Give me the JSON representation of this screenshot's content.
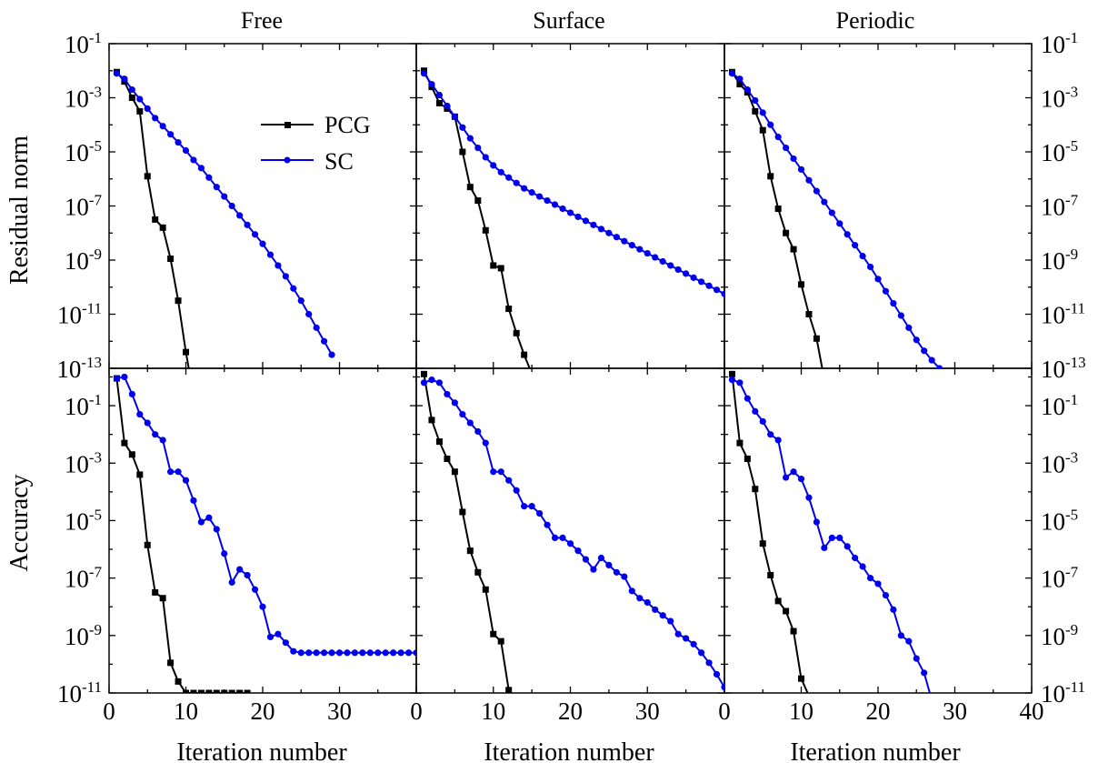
{
  "colors": {
    "PCG": "#000000",
    "SC": "#0000ee",
    "axis": "#000000",
    "background": "#ffffff"
  },
  "chart_data": {
    "type": "line",
    "layout": "2 rows x 3 columns, shared x axis",
    "column_titles": [
      "Free",
      "Surface",
      "Periodic"
    ],
    "legend": {
      "entries": [
        "PCG",
        "SC"
      ],
      "placement": "top-left panel, upper middle"
    },
    "xlabel": "Iteration number",
    "x_ticks": [
      0,
      10,
      20,
      30
    ],
    "x_tick_last": 40,
    "xlim": [
      0,
      40
    ],
    "rows": [
      {
        "ylabel": "Residual norm",
        "yscale": "log",
        "ylim_log10": [
          -13,
          -1
        ],
        "y_ticks": [
          {
            "base": "10",
            "exp": "-1"
          },
          {
            "base": "10",
            "exp": "-3"
          },
          {
            "base": "10",
            "exp": "-5"
          },
          {
            "base": "10",
            "exp": "-7"
          },
          {
            "base": "10",
            "exp": "-9"
          },
          {
            "base": "10",
            "exp": "-11"
          },
          {
            "base": "10",
            "exp": "-13"
          }
        ]
      },
      {
        "ylabel": "Accuracy",
        "yscale": "log",
        "ylim_log10": [
          -11,
          0.3
        ],
        "y_ticks": [
          {
            "base": "10",
            "exp": "-1"
          },
          {
            "base": "10",
            "exp": "-3"
          },
          {
            "base": "10",
            "exp": "-5"
          },
          {
            "base": "10",
            "exp": "-7"
          },
          {
            "base": "10",
            "exp": "-9"
          },
          {
            "base": "10",
            "exp": "-11"
          }
        ]
      }
    ],
    "panels": [
      {
        "row": 0,
        "col": 0,
        "title": "Free",
        "series": [
          {
            "name": "PCG",
            "x": [
              1,
              2,
              3,
              4,
              5,
              6,
              7,
              8,
              9,
              10,
              11
            ],
            "log10_y": [
              -2.05,
              -2.4,
              -3.0,
              -3.5,
              -5.9,
              -7.5,
              -7.8,
              -8.95,
              -10.5,
              -12.4,
              -14.0
            ]
          },
          {
            "name": "SC",
            "x": [
              1,
              2,
              3,
              4,
              5,
              6,
              7,
              8,
              9,
              10,
              11,
              12,
              13,
              14,
              15,
              16,
              17,
              18,
              19,
              20,
              21,
              22,
              23,
              24,
              25,
              26,
              27,
              28,
              29
            ],
            "log10_y": [
              -2.1,
              -2.3,
              -2.7,
              -3.05,
              -3.4,
              -3.75,
              -4.05,
              -4.35,
              -4.65,
              -4.95,
              -5.3,
              -5.6,
              -5.95,
              -6.3,
              -6.65,
              -7.0,
              -7.35,
              -7.7,
              -8.05,
              -8.4,
              -8.8,
              -9.2,
              -9.6,
              -10.05,
              -10.5,
              -11.0,
              -11.5,
              -12.0,
              -12.5
            ]
          }
        ]
      },
      {
        "row": 0,
        "col": 1,
        "title": "Surface",
        "series": [
          {
            "name": "PCG",
            "x": [
              1,
              2,
              3,
              4,
              5,
              6,
              7,
              8,
              9,
              10,
              11,
              12,
              13,
              14,
              15
            ],
            "log10_y": [
              -2.0,
              -2.6,
              -3.2,
              -3.4,
              -3.7,
              -5.0,
              -6.3,
              -6.8,
              -7.9,
              -9.2,
              -9.3,
              -10.8,
              -11.7,
              -12.5,
              -13.2
            ]
          },
          {
            "name": "SC",
            "x": [
              1,
              2,
              3,
              4,
              5,
              6,
              7,
              8,
              9,
              10,
              11,
              12,
              13,
              14,
              15,
              16,
              17,
              18,
              19,
              20,
              21,
              22,
              23,
              24,
              25,
              26,
              27,
              28,
              29,
              30,
              31,
              32,
              33,
              34,
              35,
              36,
              37,
              38,
              39,
              40
            ],
            "log10_y": [
              -2.1,
              -2.5,
              -2.9,
              -3.3,
              -3.7,
              -4.1,
              -4.5,
              -4.85,
              -5.2,
              -5.5,
              -5.75,
              -5.95,
              -6.15,
              -6.35,
              -6.5,
              -6.65,
              -6.8,
              -6.95,
              -7.1,
              -7.25,
              -7.4,
              -7.55,
              -7.7,
              -7.85,
              -8.0,
              -8.15,
              -8.3,
              -8.45,
              -8.6,
              -8.75,
              -8.9,
              -9.05,
              -9.2,
              -9.35,
              -9.5,
              -9.65,
              -9.8,
              -9.95,
              -10.1,
              -10.25
            ]
          }
        ]
      },
      {
        "row": 0,
        "col": 2,
        "title": "Periodic",
        "series": [
          {
            "name": "PCG",
            "x": [
              1,
              2,
              3,
              4,
              5,
              6,
              7,
              8,
              9,
              10,
              11,
              12,
              13
            ],
            "log10_y": [
              -2.05,
              -2.5,
              -2.8,
              -3.5,
              -4.2,
              -5.9,
              -7.1,
              -8.0,
              -8.6,
              -9.9,
              -11.0,
              -11.9,
              -13.4
            ]
          },
          {
            "name": "SC",
            "x": [
              1,
              2,
              3,
              4,
              5,
              6,
              7,
              8,
              9,
              10,
              11,
              12,
              13,
              14,
              15,
              16,
              17,
              18,
              19,
              20,
              21,
              22,
              23,
              24,
              25,
              26,
              27,
              28,
              29
            ],
            "log10_y": [
              -2.1,
              -2.3,
              -2.7,
              -3.1,
              -3.55,
              -4.0,
              -4.45,
              -4.85,
              -5.25,
              -5.65,
              -6.05,
              -6.45,
              -6.85,
              -7.25,
              -7.65,
              -8.05,
              -8.45,
              -8.85,
              -9.25,
              -9.7,
              -10.15,
              -10.6,
              -11.05,
              -11.5,
              -11.95,
              -12.35,
              -12.7,
              -13.0,
              -13.3
            ]
          }
        ]
      },
      {
        "row": 1,
        "col": 0,
        "title": "Free",
        "series": [
          {
            "name": "PCG",
            "x": [
              1,
              2,
              3,
              4,
              5,
              6,
              7,
              8,
              9,
              10,
              11,
              12,
              13,
              14,
              15,
              16,
              17,
              18
            ],
            "log10_y": [
              -0.05,
              -2.3,
              -2.7,
              -3.4,
              -5.85,
              -7.5,
              -7.7,
              -9.95,
              -10.6,
              -11.0,
              -11.0,
              -11.0,
              -11.0,
              -11.0,
              -11.0,
              -11.0,
              -11.0,
              -11.0
            ]
          },
          {
            "name": "SC",
            "x": [
              1,
              2,
              3,
              4,
              5,
              6,
              7,
              8,
              9,
              10,
              11,
              12,
              13,
              14,
              15,
              16,
              17,
              18,
              19,
              20,
              21,
              22,
              23,
              24,
              25,
              26,
              27,
              28,
              29,
              30,
              31,
              32,
              33,
              34,
              35,
              36,
              37,
              38,
              39,
              40
            ],
            "log10_y": [
              -0.05,
              0.0,
              -0.6,
              -1.3,
              -1.6,
              -2.0,
              -2.2,
              -3.3,
              -3.3,
              -3.6,
              -4.3,
              -5.05,
              -4.9,
              -5.3,
              -6.15,
              -7.15,
              -6.7,
              -6.9,
              -7.4,
              -8.0,
              -9.05,
              -8.95,
              -9.25,
              -9.55,
              -9.6,
              -9.6,
              -9.6,
              -9.6,
              -9.6,
              -9.6,
              -9.6,
              -9.6,
              -9.6,
              -9.6,
              -9.6,
              -9.6,
              -9.6,
              -9.6,
              -9.6,
              -9.6
            ]
          }
        ]
      },
      {
        "row": 1,
        "col": 1,
        "title": "Surface",
        "series": [
          {
            "name": "PCG",
            "x": [
              1,
              2,
              3,
              4,
              5,
              6,
              7,
              8,
              9,
              10,
              11,
              12,
              13,
              14,
              15,
              16,
              17,
              18,
              19,
              20,
              21,
              22
            ],
            "log10_y": [
              0.1,
              -1.5,
              -2.25,
              -2.85,
              -3.3,
              -4.7,
              -6.05,
              -6.8,
              -7.4,
              -8.95,
              -9.2,
              -10.9,
              -11.2,
              -11.25,
              -11.25,
              -11.25,
              -11.25,
              -11.25,
              -11.25,
              -11.25,
              -11.25,
              -11.25
            ]
          },
          {
            "name": "SC",
            "x": [
              1,
              2,
              3,
              4,
              5,
              6,
              7,
              8,
              9,
              10,
              11,
              12,
              13,
              14,
              15,
              16,
              17,
              18,
              19,
              20,
              21,
              22,
              23,
              24,
              25,
              26,
              27,
              28,
              29,
              30,
              31,
              32,
              33,
              34,
              35,
              36,
              37,
              38,
              39,
              40
            ],
            "log10_y": [
              -0.2,
              -0.1,
              -0.2,
              -0.6,
              -0.9,
              -1.3,
              -1.6,
              -1.9,
              -2.3,
              -3.3,
              -3.3,
              -3.6,
              -3.95,
              -4.5,
              -4.5,
              -4.75,
              -5.15,
              -5.6,
              -5.6,
              -5.8,
              -6.05,
              -6.35,
              -6.7,
              -6.3,
              -6.55,
              -6.8,
              -6.95,
              -7.45,
              -7.7,
              -7.85,
              -8.1,
              -8.3,
              -8.5,
              -8.95,
              -9.1,
              -9.3,
              -9.6,
              -9.95,
              -10.35,
              -10.8
            ]
          }
        ]
      },
      {
        "row": 1,
        "col": 2,
        "title": "Periodic",
        "series": [
          {
            "name": "PCG",
            "x": [
              1,
              2,
              3,
              4,
              5,
              6,
              7,
              8,
              9,
              10,
              11,
              12,
              13,
              14,
              15,
              16,
              17,
              18,
              19
            ],
            "log10_y": [
              0.1,
              -2.3,
              -2.85,
              -3.9,
              -5.8,
              -6.9,
              -7.8,
              -8.15,
              -8.85,
              -10.5,
              -11.1,
              -11.2,
              -11.2,
              -11.2,
              -11.2,
              -11.2,
              -11.2,
              -11.2,
              -11.2
            ]
          },
          {
            "name": "SC",
            "x": [
              1,
              2,
              3,
              4,
              5,
              6,
              7,
              8,
              9,
              10,
              11,
              12,
              13,
              14,
              15,
              16,
              17,
              18,
              19,
              20,
              21,
              22,
              23,
              24,
              25,
              26,
              27
            ],
            "log10_y": [
              -0.1,
              -0.2,
              -0.75,
              -1.2,
              -1.55,
              -2.0,
              -2.2,
              -3.5,
              -3.3,
              -3.55,
              -4.2,
              -5.05,
              -5.95,
              -5.6,
              -5.6,
              -5.9,
              -6.3,
              -6.6,
              -7.0,
              -7.2,
              -7.6,
              -8.1,
              -9.0,
              -9.2,
              -9.8,
              -10.3,
              -11.25
            ]
          }
        ]
      }
    ]
  }
}
